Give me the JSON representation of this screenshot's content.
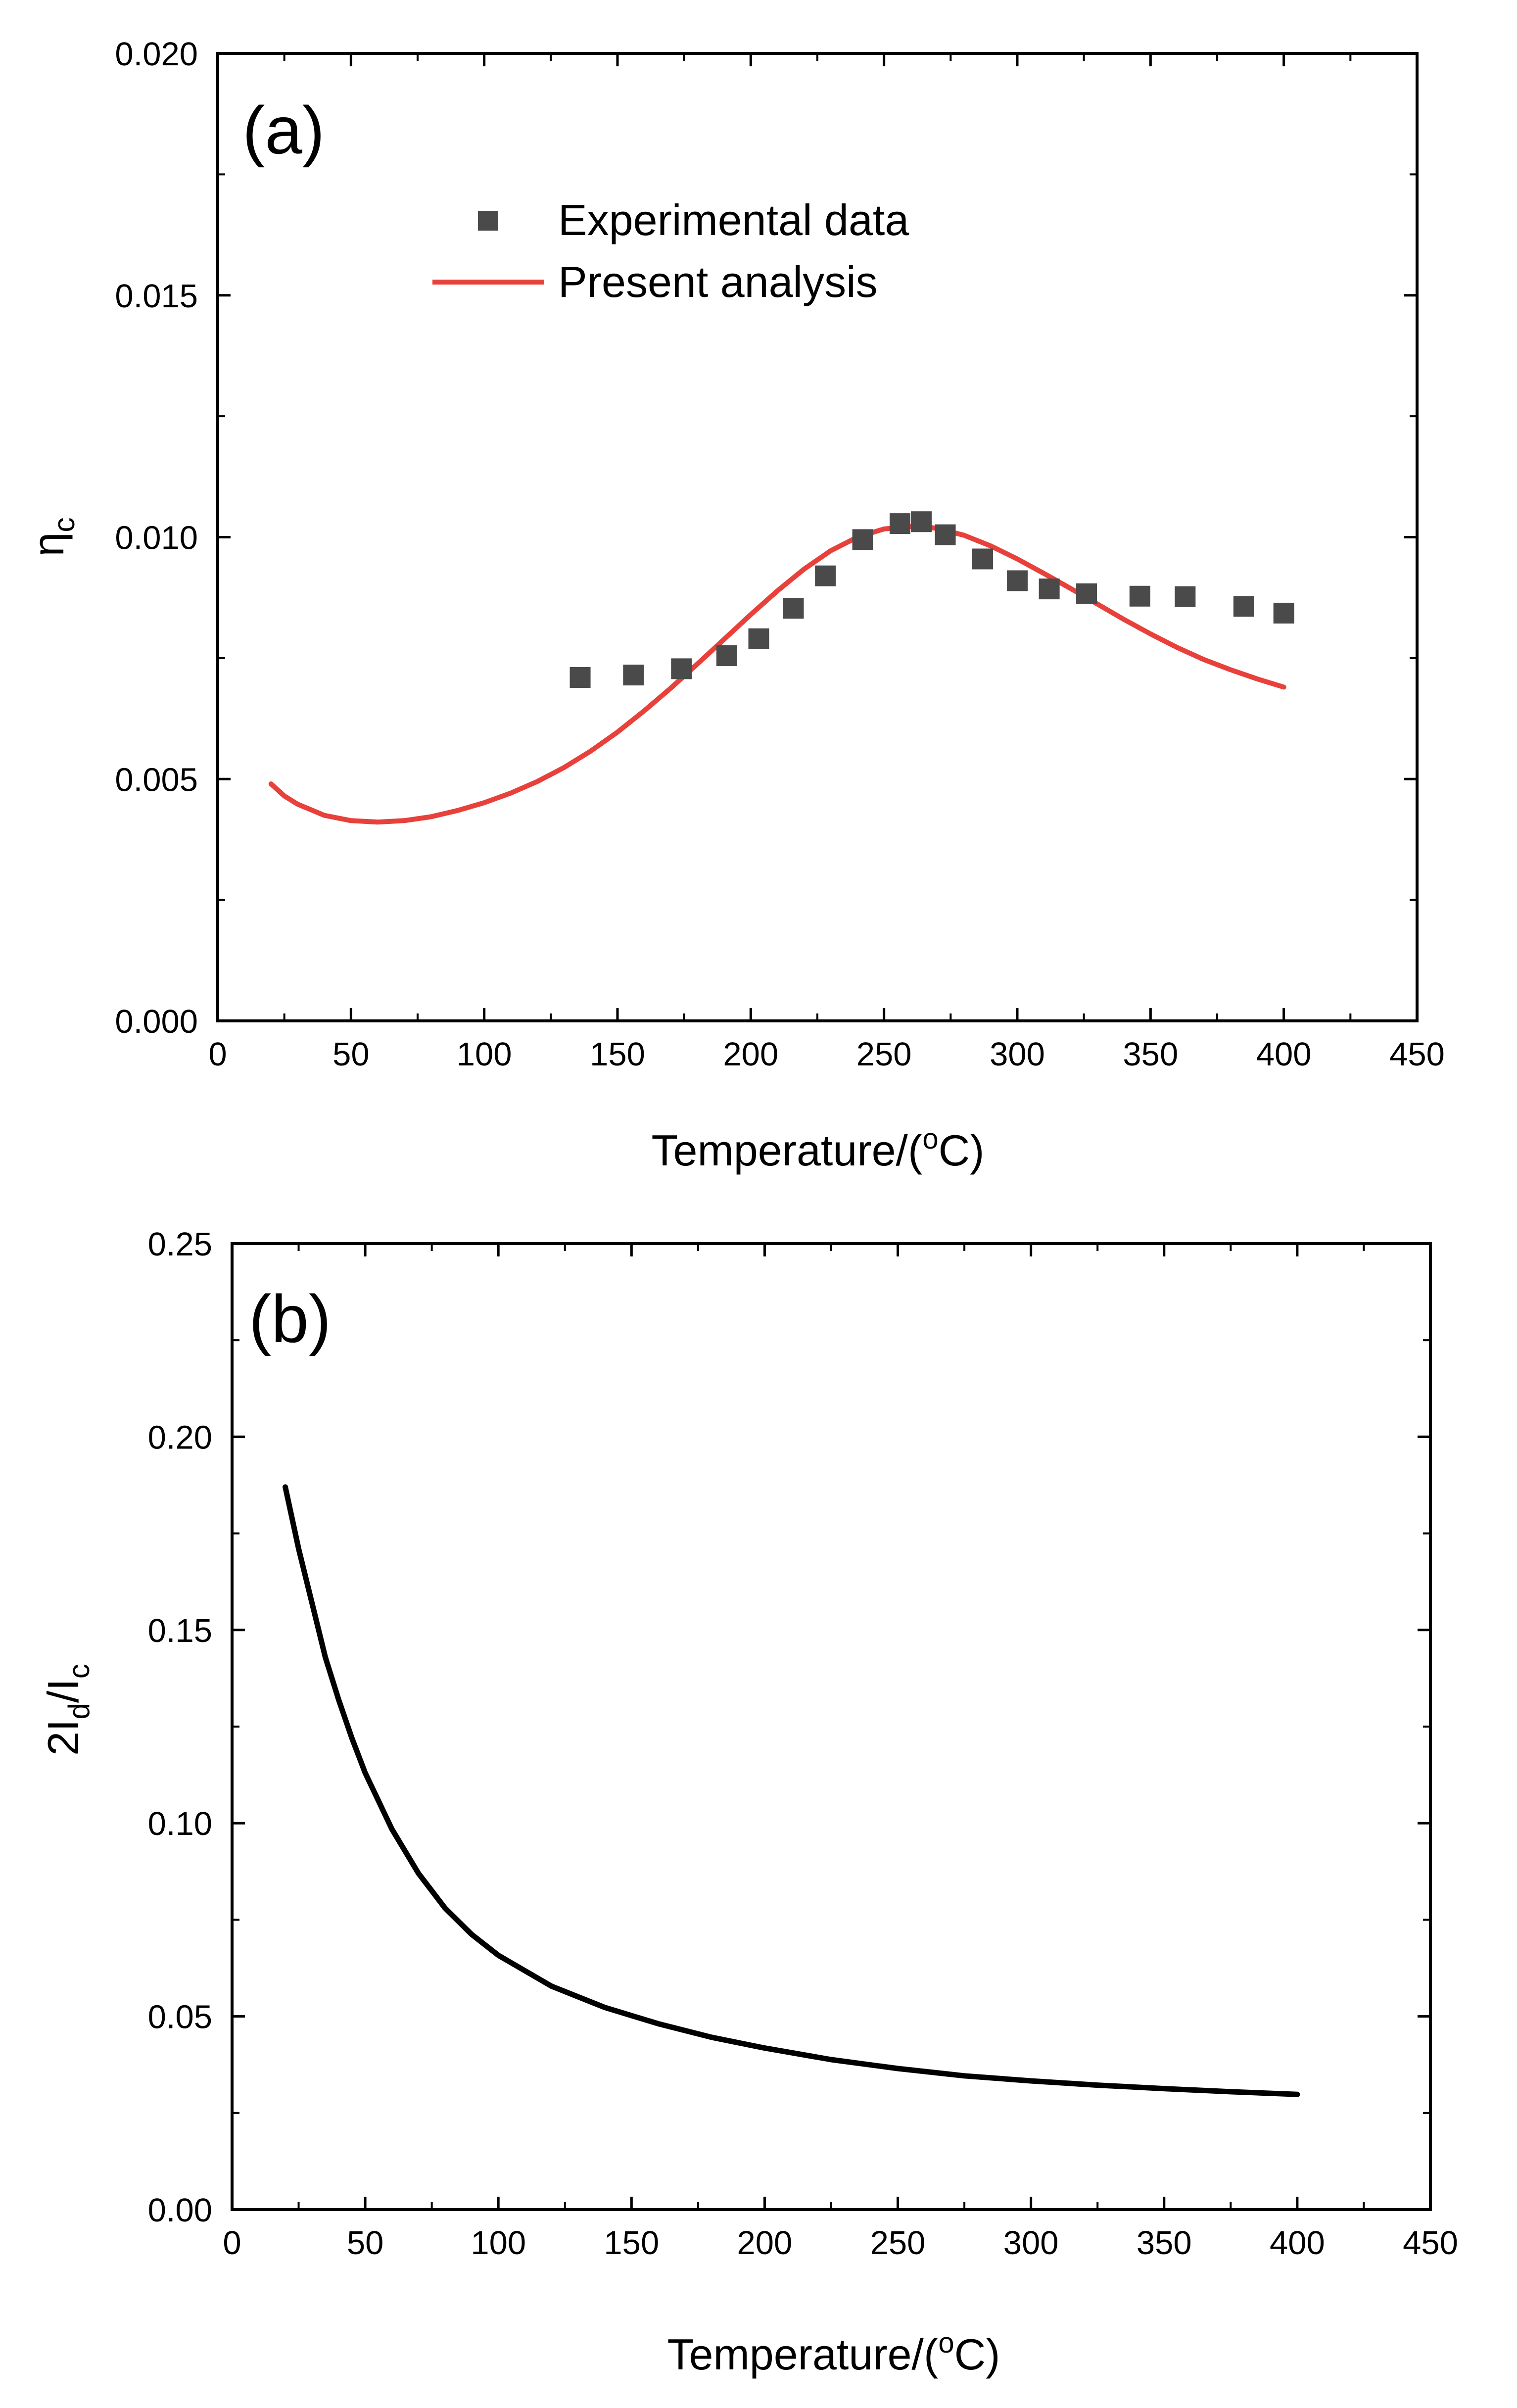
{
  "chart_data": [
    {
      "panel": "(a)",
      "type": "scatter+line",
      "xlabel_prefix": "Temperature/(",
      "xlabel_sup": "o",
      "xlabel_suffix": "C)",
      "ylabel_main": "η",
      "ylabel_sub": "c",
      "xlim": [
        0,
        450
      ],
      "ylim": [
        0,
        0.02
      ],
      "xticks": [
        "0",
        "50",
        "100",
        "150",
        "200",
        "250",
        "300",
        "350",
        "400",
        "450"
      ],
      "yticks": [
        "0.000",
        "0.005",
        "0.010",
        "0.015",
        "0.020"
      ],
      "grid": false,
      "legend_position": "top-center",
      "series": [
        {
          "name": "Experimental data",
          "kind": "scatter",
          "marker": "square",
          "color": "#4a4a4a",
          "x": [
            136,
            156,
            174,
            191,
            203,
            216,
            228,
            242,
            256,
            264,
            273,
            287,
            300,
            312,
            326,
            346,
            363,
            385,
            400
          ],
          "y": [
            0.0071,
            0.00715,
            0.00728,
            0.00755,
            0.0079,
            0.00853,
            0.0092,
            0.00995,
            0.01028,
            0.01032,
            0.01005,
            0.00955,
            0.0091,
            0.00893,
            0.00883,
            0.00878,
            0.00877,
            0.00857,
            0.00843
          ]
        },
        {
          "name": "Present analysis",
          "kind": "line",
          "color": "#e8403a",
          "x": [
            20,
            25,
            30,
            40,
            50,
            60,
            70,
            80,
            90,
            100,
            110,
            120,
            130,
            140,
            150,
            160,
            170,
            180,
            190,
            200,
            210,
            220,
            230,
            240,
            250,
            260,
            265,
            270,
            280,
            290,
            300,
            310,
            320,
            330,
            340,
            350,
            360,
            370,
            380,
            390,
            400
          ],
          "y": [
            0.0049,
            0.00465,
            0.00448,
            0.00425,
            0.00414,
            0.00411,
            0.00414,
            0.00422,
            0.00435,
            0.00451,
            0.00471,
            0.00495,
            0.00524,
            0.00558,
            0.00597,
            0.00641,
            0.00688,
            0.00738,
            0.00789,
            0.0084,
            0.00889,
            0.00934,
            0.00972,
            0.01,
            0.01017,
            0.01022,
            0.01022,
            0.01018,
            0.01004,
            0.00982,
            0.00955,
            0.00925,
            0.00894,
            0.00862,
            0.0083,
            0.008,
            0.00772,
            0.00747,
            0.00726,
            0.00707,
            0.0069
          ]
        }
      ]
    },
    {
      "panel": "(b)",
      "type": "line",
      "xlabel_prefix": "Temperature/(",
      "xlabel_sup": "o",
      "xlabel_suffix": "C)",
      "ylabel_parts": [
        "2I",
        "d",
        "/I",
        "c"
      ],
      "xlim": [
        0,
        450
      ],
      "ylim": [
        0,
        0.25
      ],
      "xticks": [
        "0",
        "50",
        "100",
        "150",
        "200",
        "250",
        "300",
        "350",
        "400",
        "450"
      ],
      "yticks": [
        "0.00",
        "0.05",
        "0.10",
        "0.15",
        "0.20",
        "0.25"
      ],
      "grid": false,
      "series": [
        {
          "kind": "line",
          "color": "#000000",
          "x": [
            20,
            25,
            30,
            35,
            40,
            45,
            50,
            60,
            70,
            80,
            90,
            100,
            120,
            140,
            160,
            180,
            200,
            225,
            250,
            275,
            300,
            325,
            350,
            375,
            400
          ],
          "y": [
            0.187,
            0.171,
            0.157,
            0.143,
            0.132,
            0.122,
            0.113,
            0.0985,
            0.087,
            0.078,
            0.0712,
            0.0658,
            0.0578,
            0.0523,
            0.0481,
            0.0446,
            0.0418,
            0.0388,
            0.0365,
            0.0346,
            0.0333,
            0.0322,
            0.0313,
            0.0305,
            0.0298
          ]
        }
      ]
    }
  ]
}
